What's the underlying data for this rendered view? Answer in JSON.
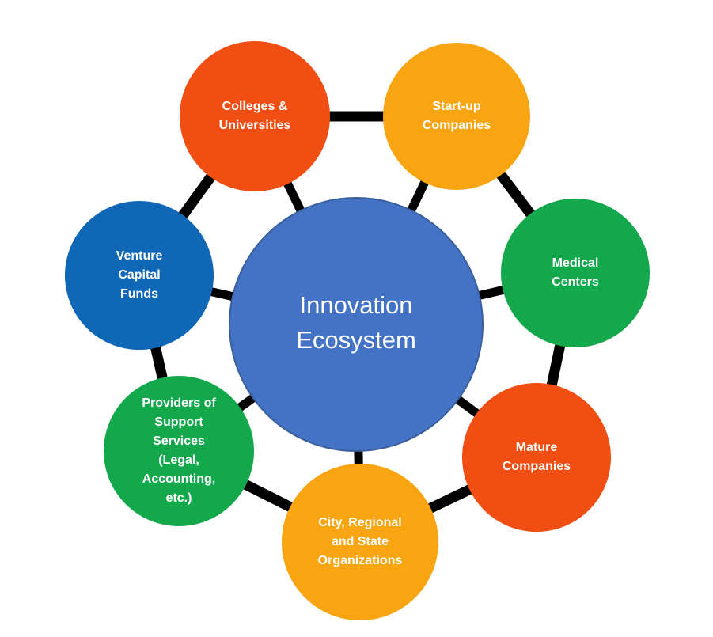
{
  "center": {
    "lines": [
      "Innovation",
      "Ecosystem"
    ],
    "color": "#4472C4"
  },
  "nodes": [
    {
      "id": "colleges-universities",
      "lines": [
        "Colleges &",
        "Universities"
      ],
      "color": "#F04E12"
    },
    {
      "id": "start-up-companies",
      "lines": [
        "Start-up",
        "Companies"
      ],
      "color": "#F9A512"
    },
    {
      "id": "medical-centers",
      "lines": [
        "Medical",
        "Centers"
      ],
      "color": "#13A84C"
    },
    {
      "id": "mature-companies",
      "lines": [
        "Mature",
        "Companies"
      ],
      "color": "#F04E12"
    },
    {
      "id": "city-regional-state-organizations",
      "lines": [
        "City, Regional",
        "and State",
        "Organizations"
      ],
      "color": "#F9A512"
    },
    {
      "id": "providers-of-support-services",
      "lines": [
        "Providers of",
        "Support",
        "Services",
        "(Legal,",
        "Accounting,",
        "etc.)"
      ],
      "color": "#13A84C"
    },
    {
      "id": "venture-capital-funds",
      "lines": [
        "Venture",
        "Capital",
        "Funds"
      ],
      "color": "#0F67B5"
    }
  ]
}
